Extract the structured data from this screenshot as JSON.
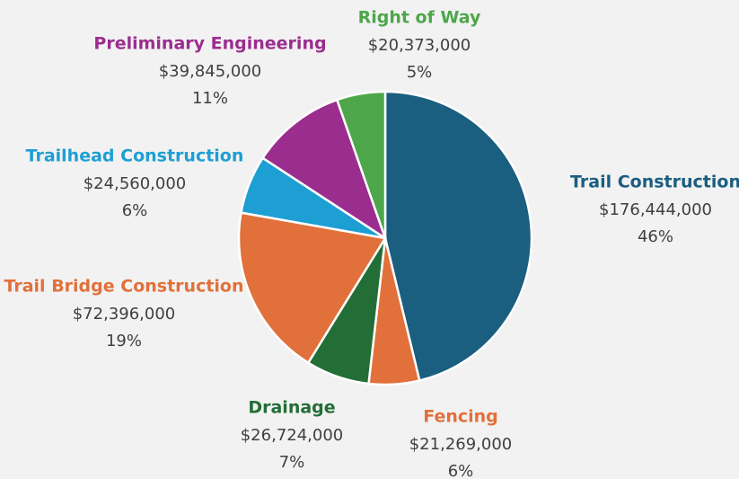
{
  "chart_data": {
    "type": "pie",
    "categories": [
      "Trail Construction",
      "Fencing",
      "Drainage",
      "Trail Bridge Construction",
      "Trailhead Construction",
      "Preliminary Engineering",
      "Right of Way"
    ],
    "values": [
      176444000,
      21269000,
      26724000,
      72396000,
      24560000,
      39845000,
      20373000
    ],
    "value_labels": [
      "$176,444,000",
      "$21,269,000",
      "$26,724,000",
      "$72,396,000",
      "$24,560,000",
      "$39,845,000",
      "$20,373,000"
    ],
    "percents": [
      46,
      6,
      7,
      19,
      6,
      11,
      5
    ],
    "percent_labels": [
      "46%",
      "6%",
      "7%",
      "19%",
      "6%",
      "11%",
      "5%"
    ],
    "colors": [
      "#1a5e80",
      "#e2703a",
      "#236d37",
      "#e2703a",
      "#1d9fd4",
      "#9b2d8e",
      "#4ea64a"
    ]
  }
}
